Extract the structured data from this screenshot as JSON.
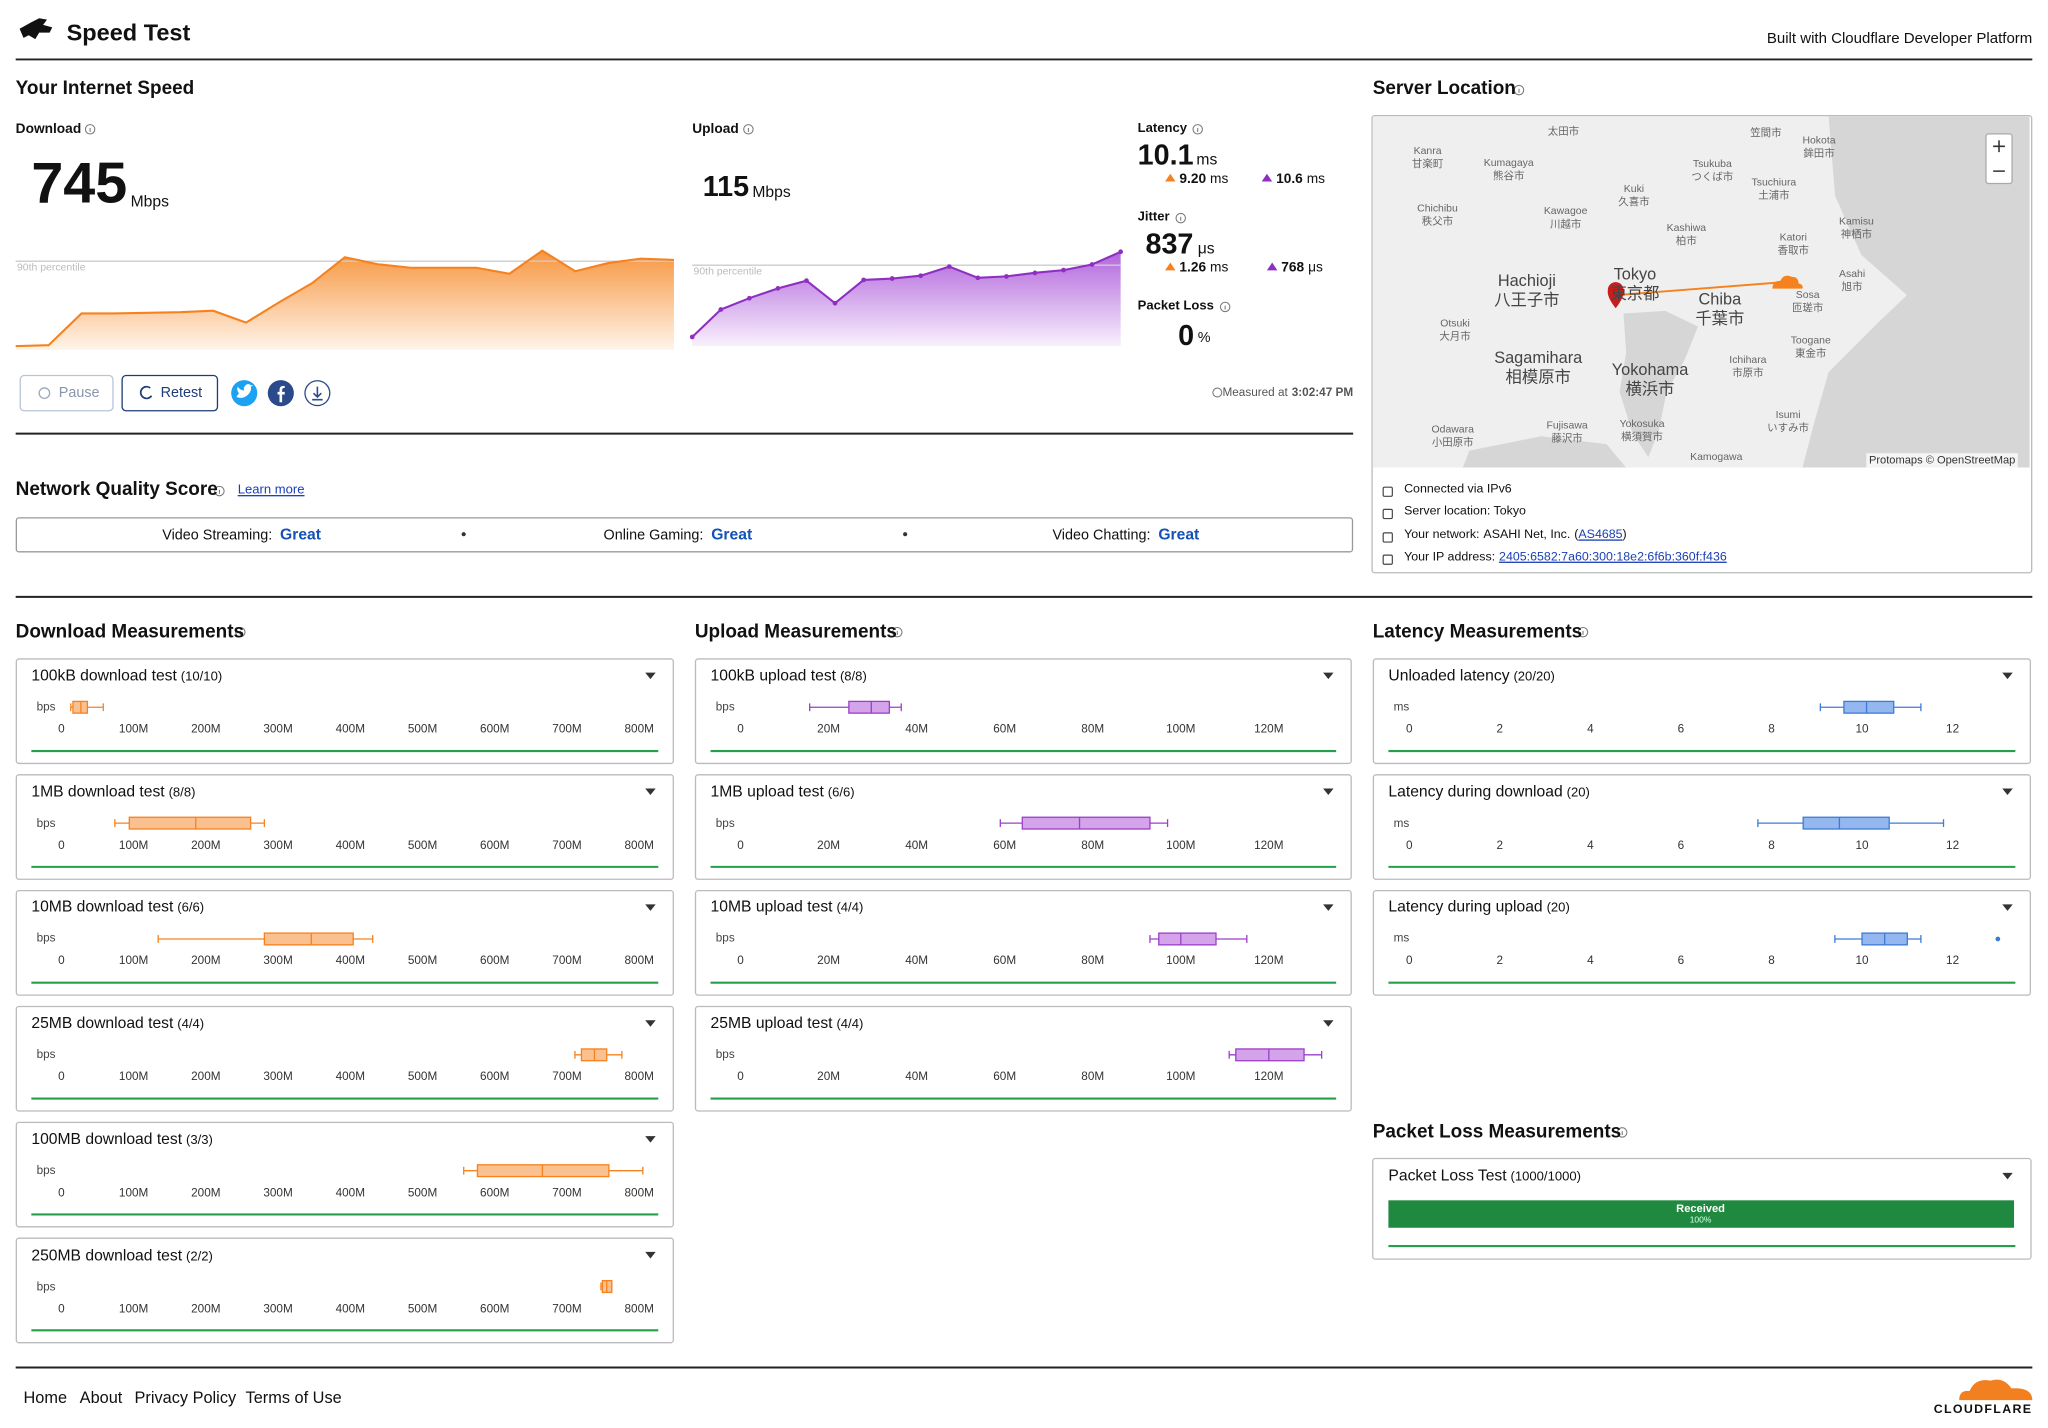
{
  "header": {
    "title": "Speed Test",
    "built_with": "Built with Cloudflare Developer Platform"
  },
  "summary": {
    "title": "Your Internet Speed",
    "download": {
      "label": "Download",
      "value": 745,
      "unit": "Mbps",
      "percentile": "90th percentile",
      "series": [
        33,
        40,
        307,
        307,
        312,
        318,
        330,
        230,
        400,
        560,
        778,
        720,
        690,
        690,
        690,
        640,
        833,
        660,
        730,
        767,
        756
      ]
    },
    "upload": {
      "label": "Upload",
      "value": 115,
      "unit": "Mbps",
      "percentile": "90th percentile",
      "series": [
        13,
        52,
        68,
        82,
        93,
        61,
        94,
        96,
        100,
        113,
        97,
        99,
        104,
        108,
        116,
        134
      ]
    },
    "latency": {
      "label": "Latency",
      "value": 10.1,
      "unit": "ms",
      "down": "9.20",
      "down_unit": "ms",
      "up": 10.6,
      "up_unit": "ms"
    },
    "jitter": {
      "label": "Jitter",
      "value": 837,
      "unit": "μs",
      "down": "1.26",
      "down_unit": "ms",
      "up": 768,
      "up_unit": "μs"
    },
    "packet_loss": {
      "label": "Packet Loss",
      "value": 0,
      "unit": "%"
    },
    "measured_label": "Measured at",
    "measured_time": "3:02:47 PM",
    "buttons": {
      "pause": "Pause",
      "retest": "Retest"
    }
  },
  "quality": {
    "title": "Network Quality Score",
    "learn_more": "Learn more",
    "items": [
      {
        "label": "Video Streaming:",
        "score": "Great"
      },
      {
        "label": "Online Gaming:",
        "score": "Great"
      },
      {
        "label": "Video Chatting:",
        "score": "Great"
      }
    ]
  },
  "server": {
    "title": "Server Location",
    "attribution": "Protomaps © OpenStreetMap",
    "map_labels": [
      {
        "en": "Kanra",
        "ja": "甘楽町"
      },
      {
        "en": "Kumagaya",
        "ja": "熊谷市"
      },
      {
        "ja": "太田市"
      },
      {
        "ja": "笠間市"
      },
      {
        "en": "Hokota",
        "ja": "鉾田市"
      },
      {
        "en": "Tsukuba",
        "ja": "つくば市"
      },
      {
        "en": "Tsuchiura",
        "ja": "土浦市"
      },
      {
        "en": "Kuki",
        "ja": "久喜市"
      },
      {
        "en": "Chichibu",
        "ja": "秩父市"
      },
      {
        "en": "Kawagoe",
        "ja": "川越市"
      },
      {
        "en": "Kashiwa",
        "ja": "柏市"
      },
      {
        "en": "Kamisu",
        "ja": "神栖市"
      },
      {
        "en": "Katori",
        "ja": "香取市"
      },
      {
        "en": "Asahi",
        "ja": "旭市"
      },
      {
        "en": "Hachioji",
        "ja": "八王子市"
      },
      {
        "en": "Tokyo",
        "ja": "東京都"
      },
      {
        "en": "Chiba",
        "ja": "千葉市"
      },
      {
        "en": "Sosa",
        "ja": "匝瑳市"
      },
      {
        "en": "Otsuki",
        "ja": "大月市"
      },
      {
        "en": "Toogane",
        "ja": "東金市"
      },
      {
        "en": "Sagamihara",
        "ja": "相模原市"
      },
      {
        "en": "Yokohama",
        "ja": "横浜市"
      },
      {
        "en": "Ichihara",
        "ja": "市原市"
      },
      {
        "en": "Isumi",
        "ja": "いすみ市"
      },
      {
        "en": "Odawara",
        "ja": "小田原市"
      },
      {
        "en": "Fujisawa",
        "ja": "藤沢市"
      },
      {
        "en": "Yokosuka",
        "ja": "横須賀市"
      },
      {
        "en": "Kamogawa"
      }
    ],
    "info": {
      "ipv6": "Connected via IPv6",
      "location": "Server location: Tokyo",
      "network_label": "Your network:",
      "network": "ASAHI Net, Inc.",
      "asn": "AS4685",
      "ip_label": "Your IP address:",
      "ip": "2405:6582:7a60:300:18e2:6f6b:360f:f436"
    }
  },
  "measurements": {
    "download": {
      "title": "Download Measurements",
      "unit": "bps",
      "xlim": [
        0,
        830
      ],
      "ticks": [
        0,
        {
          "value": 100,
          "label": "100M"
        },
        {
          "value": 200,
          "label": "200M"
        },
        {
          "value": 300,
          "label": "300M"
        },
        {
          "value": 400,
          "label": "400M"
        },
        {
          "value": 500,
          "label": "500M"
        },
        {
          "value": 600,
          "label": "600M"
        },
        {
          "value": 700,
          "label": "700M"
        },
        {
          "value": 800,
          "label": "800M"
        }
      ],
      "tests": [
        {
          "name": "100kB download test",
          "count": "(10/10)",
          "box": [
            13,
            16,
            27,
            36,
            58
          ]
        },
        {
          "name": "1MB download test",
          "count": "(8/8)",
          "box": [
            74,
            94,
            186,
            262,
            281
          ]
        },
        {
          "name": "10MB download test",
          "count": "(6/6)",
          "box": [
            134,
            281,
            346,
            404,
            431
          ]
        },
        {
          "name": "25MB download test",
          "count": "(4/4)",
          "box": [
            711,
            720,
            738,
            755,
            776
          ]
        },
        {
          "name": "100MB download test",
          "count": "(3/3)",
          "box": [
            557,
            576,
            666,
            758,
            805
          ]
        },
        {
          "name": "250MB download test",
          "count": "(2/2)",
          "box": [
            747,
            749,
            755,
            762,
            762
          ]
        }
      ]
    },
    "upload": {
      "title": "Upload Measurements",
      "unit": "bps",
      "xlim": [
        0,
        135
      ],
      "ticks": [
        0,
        {
          "value": 20,
          "label": "20M"
        },
        {
          "value": 40,
          "label": "40M"
        },
        {
          "value": 60,
          "label": "60M"
        },
        {
          "value": 80,
          "label": "80M"
        },
        {
          "value": 100,
          "label": "100M"
        },
        {
          "value": 120,
          "label": "120M"
        }
      ],
      "tests": [
        {
          "name": "100kB upload test",
          "count": "(8/8)",
          "box": [
            15.7,
            24.6,
            29.7,
            33.8,
            36.5
          ]
        },
        {
          "name": "1MB upload test",
          "count": "(6/6)",
          "box": [
            59,
            64,
            77,
            93,
            97
          ]
        },
        {
          "name": "10MB upload test",
          "count": "(4/4)",
          "box": [
            93,
            95,
            100,
            108,
            115
          ]
        },
        {
          "name": "25MB upload test",
          "count": "(4/4)",
          "box": [
            111,
            112.5,
            120,
            128,
            132
          ]
        }
      ]
    },
    "latency": {
      "title": "Latency Measurements",
      "unit": "ms",
      "xlim": [
        0,
        13.3
      ],
      "ticks": [
        0,
        2,
        4,
        6,
        8,
        10,
        12
      ],
      "tests": [
        {
          "name": "Unloaded latency",
          "count": "(20/20)",
          "box": [
            9.08,
            9.6,
            10.1,
            10.7,
            11.3
          ]
        },
        {
          "name": "Latency during download",
          "count": "(20)",
          "box": [
            7.7,
            8.7,
            9.5,
            10.6,
            11.8
          ]
        },
        {
          "name": "Latency during upload",
          "count": "(20)",
          "box": [
            9.4,
            10.0,
            10.5,
            11.0,
            11.3
          ],
          "outliers": [
            13.0
          ]
        }
      ]
    },
    "packet_loss": {
      "title": "Packet Loss Measurements",
      "test": "Packet Loss Test",
      "count": "(1000/1000)",
      "bar_label": "Received",
      "value": 100,
      "value_label": "100%"
    }
  },
  "footer": {
    "links": [
      "Home",
      "About",
      "Privacy Policy",
      "Terms of Use"
    ],
    "logo": "CLOUDFLARE"
  }
}
